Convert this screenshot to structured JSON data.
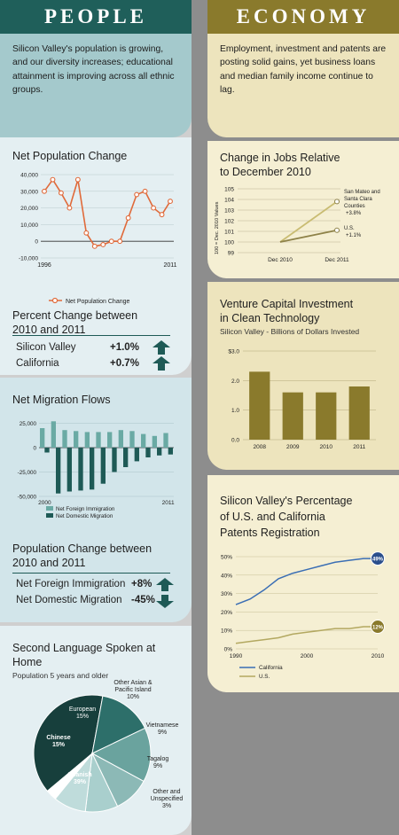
{
  "people": {
    "header": "PEOPLE",
    "intro": "Silicon Valley's population is growing, and our diversity increases; educational attainment is improving across all ethnic groups.",
    "pop_title": "Net Population Change",
    "pct_title_1": "Percent Change between",
    "pct_title_2": "2010 and 2011",
    "pct_rows": [
      {
        "label": "Silicon Valley",
        "value": "+1.0%"
      },
      {
        "label": "California",
        "value": "+0.7%"
      }
    ],
    "mig_title": "Net Migration Flows",
    "popchg_title_1": "Population Change between",
    "popchg_title_2": "2010 and 2011",
    "popchg_rows": [
      {
        "label": "Net Foreign Immigration",
        "value": "+8%"
      },
      {
        "label": "Net Domestic Migration",
        "value": "-45%"
      }
    ],
    "lang_title": "Second Language Spoken at Home",
    "lang_sub": "Population 5 years and older"
  },
  "economy": {
    "header": "ECONOMY",
    "intro": "Employment, investment and patents are posting solid gains, yet business loans and median family income continue to lag.",
    "jobs_title_1": "Change in Jobs Relative",
    "jobs_title_2": "to December 2010",
    "vc_title_1": "Venture Capital Investment",
    "vc_title_2": "in Clean Technology",
    "vc_sub": "Silicon Valley - Billions of Dollars Invested",
    "pat_title_1": "Silicon Valley's Percentage",
    "pat_title_2": "of U.S. and California",
    "pat_title_3": "Patents Registration"
  },
  "colors": {
    "teal_dark": "#1e5a56",
    "teal_mid": "#6aaaa4",
    "ochre": "#8a7a2c",
    "olive": "#b3a860",
    "blue": "#3a6eb4",
    "orange": "#e06a3a"
  },
  "chart_data": [
    {
      "id": "net-population-change",
      "type": "line",
      "title": "Net Population Change",
      "x": [
        1996,
        1997,
        1998,
        1999,
        2000,
        2001,
        2002,
        2003,
        2004,
        2005,
        2006,
        2007,
        2008,
        2009,
        2010,
        2011
      ],
      "series": [
        {
          "name": "Net Population Change",
          "values": [
            30000,
            37000,
            29000,
            20000,
            37000,
            5000,
            -3000,
            -2000,
            0,
            0,
            14000,
            28000,
            30000,
            20000,
            16000,
            24000
          ]
        }
      ],
      "yticks": [
        "40,000",
        "30,000",
        "20,000",
        "10,000",
        "0",
        "-10,000"
      ],
      "xlabels": [
        "1996",
        "2011"
      ],
      "ylim": [
        -10000,
        40000
      ]
    },
    {
      "id": "net-migration-flows",
      "type": "bar",
      "title": "Net Migration Flows",
      "x": [
        2000,
        2001,
        2002,
        2003,
        2004,
        2005,
        2006,
        2007,
        2008,
        2009,
        2010,
        2011
      ],
      "series": [
        {
          "name": "Net Foreign Immigration",
          "values": [
            20000,
            27000,
            18000,
            17000,
            16000,
            16000,
            16000,
            18000,
            17000,
            14000,
            12000,
            15000
          ]
        },
        {
          "name": "Net Domestic Migration",
          "values": [
            -5000,
            -47000,
            -45000,
            -44000,
            -43000,
            -37000,
            -25000,
            -20000,
            -14000,
            -10000,
            -8000,
            -7000
          ]
        }
      ],
      "yticks": [
        "25,000",
        "0",
        "-25,000",
        "-50,000"
      ],
      "xlabels": [
        "2000",
        "2011"
      ],
      "ylim": [
        -50000,
        30000
      ]
    },
    {
      "id": "second-language",
      "type": "pie",
      "title": "Second Language Spoken at Home",
      "slices": [
        {
          "label": "Spanish",
          "value": 39,
          "text": "39%"
        },
        {
          "label": "Chinese",
          "value": 15,
          "text": "15%"
        },
        {
          "label": "European",
          "value": 15,
          "text": "15%"
        },
        {
          "label": "Other Asian & Pacific Island",
          "value": 10,
          "text": "10%"
        },
        {
          "label": "Vietnamese",
          "value": 9,
          "text": "9%"
        },
        {
          "label": "Tagalog",
          "value": 9,
          "text": "9%"
        },
        {
          "label": "Other and Unspecified",
          "value": 3,
          "text": "3%"
        }
      ]
    },
    {
      "id": "jobs-relative",
      "type": "line",
      "title": "Change in Jobs Relative to December 2010",
      "ylabel": "100 = Dec. 2010 Values",
      "yticks": [
        "105",
        "104",
        "103",
        "102",
        "101",
        "100",
        "99"
      ],
      "ylim": [
        99,
        105
      ],
      "categories": [
        "Dec 2010",
        "Dec 2011"
      ],
      "series": [
        {
          "name": "San Mateo and Santa Clara Counties",
          "values": [
            100,
            103.8
          ],
          "text": "+3.8%"
        },
        {
          "name": "U.S.",
          "values": [
            100,
            101.1
          ],
          "text": "+1.1%"
        }
      ]
    },
    {
      "id": "venture-capital",
      "type": "bar",
      "title": "Venture Capital Investment in Clean Technology",
      "categories": [
        "2008",
        "2009",
        "2010",
        "2011"
      ],
      "values": [
        2.3,
        1.6,
        1.6,
        1.8
      ],
      "yticks": [
        "$3.0",
        "2.0",
        "1.0",
        "0.0"
      ],
      "ylim": [
        0,
        3
      ]
    },
    {
      "id": "patents",
      "type": "line",
      "title": "Silicon Valley's Percentage of U.S. and California Patents Registration",
      "x": [
        1990,
        1992,
        1994,
        1996,
        1998,
        2000,
        2002,
        2004,
        2006,
        2008,
        2010
      ],
      "series": [
        {
          "name": "California",
          "values": [
            24,
            27,
            32,
            38,
            41,
            43,
            45,
            47,
            48,
            49,
            49
          ],
          "end_label": "49%"
        },
        {
          "name": "U.S.",
          "values": [
            3,
            4,
            5,
            6,
            8,
            9,
            10,
            11,
            11,
            12,
            12
          ],
          "end_label": "12%"
        }
      ],
      "yticks": [
        "50%",
        "40%",
        "30%",
        "20%",
        "10%",
        "0%"
      ],
      "xlabels": [
        "1990",
        "2000",
        "2010"
      ],
      "ylim": [
        0,
        50
      ]
    }
  ]
}
